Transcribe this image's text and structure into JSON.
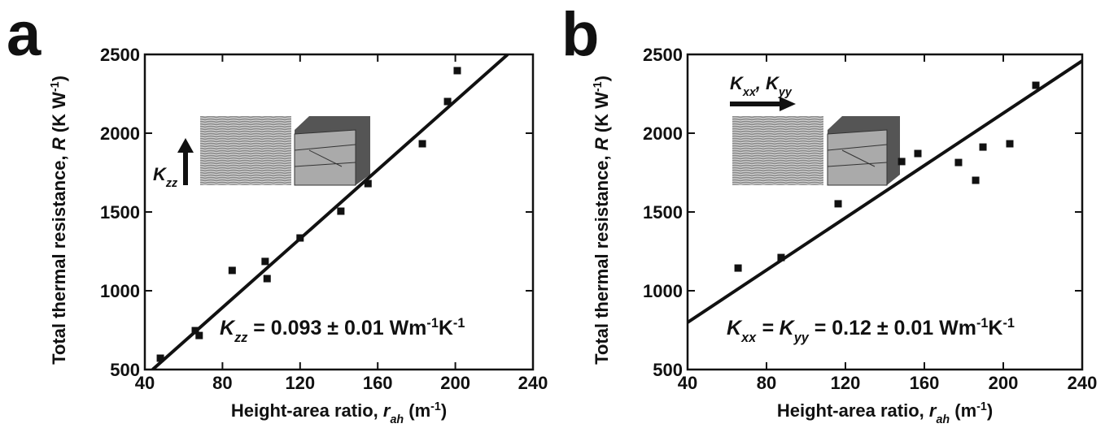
{
  "chart_data": [
    {
      "type": "scatter",
      "panel": "a",
      "points": {
        "x": [
          48,
          66,
          68,
          85,
          102,
          103,
          120,
          141,
          155,
          183,
          196,
          201
        ],
        "y": [
          572,
          747,
          716,
          1129,
          1186,
          1077,
          1335,
          1505,
          1680,
          1933,
          2201,
          2397
        ]
      },
      "fit": {
        "x": [
          44,
          227
        ],
        "y": [
          500,
          2500
        ]
      },
      "color": "#111111",
      "xlim": [
        40,
        240
      ],
      "xticks": [
        40,
        80,
        120,
        160,
        200,
        240
      ],
      "ylim": [
        500,
        2500
      ],
      "yticks": [
        500,
        1000,
        1500,
        2000,
        2500
      ],
      "xlabel": [
        "Height-area ratio, ",
        "r",
        "ah",
        " (m",
        "-1",
        ")"
      ],
      "ylabel": [
        "Total thermal resistance, ",
        "R",
        " (K W",
        "-1",
        ")"
      ],
      "annotation": [
        "K",
        "zz",
        " = 0.093 ± 0.01 Wm",
        "-1",
        "K",
        "-1"
      ],
      "arrow_label": [
        "K",
        "zz"
      ]
    },
    {
      "type": "scatter",
      "panel": "b",
      "points": {
        "x": [
          65.6,
          87.4,
          116.3,
          148.5,
          156.7,
          177.3,
          186,
          189.7,
          203.3,
          216.5
        ],
        "y": [
          1144,
          1211,
          1552,
          1820,
          1871,
          1814,
          1701,
          1912,
          1933,
          2304
        ]
      },
      "fit": {
        "x": [
          40,
          240
        ],
        "y": [
          799,
          2459
        ]
      },
      "color": "#111111",
      "xlim": [
        40,
        240
      ],
      "xticks": [
        40,
        80,
        120,
        160,
        200,
        240
      ],
      "ylim": [
        500,
        2500
      ],
      "yticks": [
        500,
        1000,
        1500,
        2000,
        2500
      ],
      "xlabel": [
        "Height-area ratio, ",
        "r",
        "ah",
        " (m",
        "-1",
        ")"
      ],
      "ylabel": [
        "Total thermal resistance, ",
        "R",
        " (K W",
        "-1",
        ")"
      ],
      "annotation": [
        "K",
        "xx",
        " = K",
        "yy",
        " = 0.12 ± 0.01 Wm",
        "-1",
        "K",
        "-1"
      ],
      "arrow_label": [
        "K",
        "xx",
        ", K",
        "yy"
      ]
    }
  ]
}
